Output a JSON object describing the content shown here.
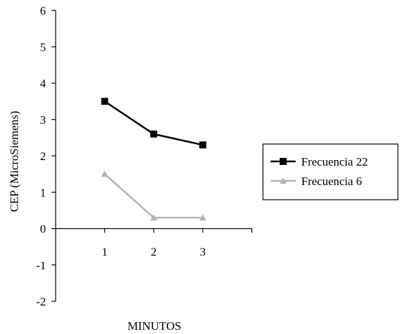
{
  "chart_data": {
    "type": "line",
    "xlabel": "MINUTOS",
    "ylabel": "CEP (MicroSiemens)",
    "ylim": [
      -2,
      6
    ],
    "xlim": [
      0,
      4
    ],
    "yticks": [
      -2,
      -1,
      0,
      1,
      2,
      3,
      4,
      5,
      6
    ],
    "xticks": [
      1,
      2,
      3
    ],
    "grid": false,
    "legend_position": "right",
    "series": [
      {
        "name": "Frecuencia 22",
        "color": "#000000",
        "marker": "square",
        "x": [
          1,
          2,
          3
        ],
        "y": [
          3.5,
          2.6,
          2.3
        ]
      },
      {
        "name": "Frecuencia 6",
        "color": "#b3b3b3",
        "marker": "triangle",
        "x": [
          1,
          2,
          3
        ],
        "y": [
          1.5,
          0.3,
          0.3
        ]
      }
    ]
  }
}
